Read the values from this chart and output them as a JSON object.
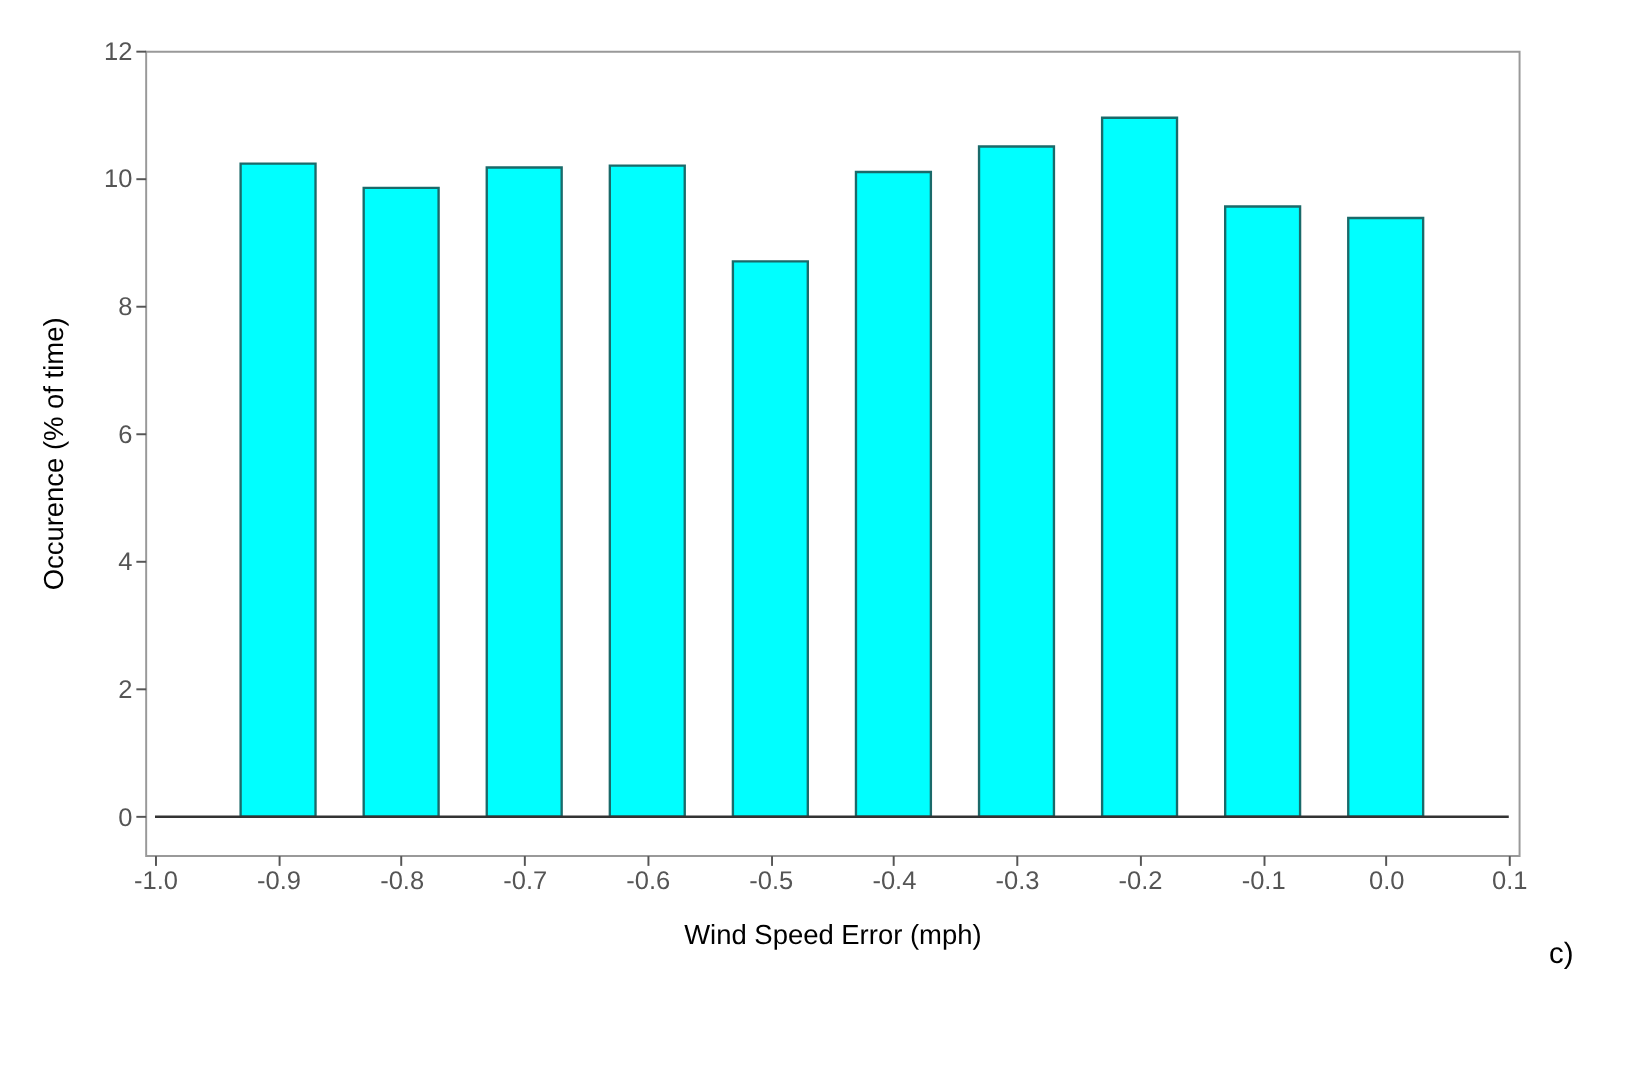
{
  "chart_data": {
    "type": "bar",
    "xlabel": "Wind Speed Error (mph)",
    "ylabel": "Occurence (% of time)",
    "x": [
      -0.9,
      -0.8,
      -0.7,
      -0.6,
      -0.5,
      -0.4,
      -0.3,
      -0.2,
      -0.1,
      0.0
    ],
    "values": [
      10.23,
      9.85,
      10.17,
      10.2,
      8.7,
      10.1,
      10.5,
      10.95,
      9.56,
      9.38
    ],
    "color": "#00ffff",
    "xlim": [
      -1.0,
      0.1
    ],
    "xticks": [
      {
        "value": -1.0,
        "label": "-1.0"
      },
      {
        "value": -0.9,
        "label": "-0.9"
      },
      {
        "value": -0.8,
        "label": "-0.8"
      },
      {
        "value": -0.7,
        "label": "-0.7"
      },
      {
        "value": -0.6,
        "label": "-0.6"
      },
      {
        "value": -0.5,
        "label": "-0.5"
      },
      {
        "value": -0.4,
        "label": "-0.4"
      },
      {
        "value": -0.3,
        "label": "-0.3"
      },
      {
        "value": -0.2,
        "label": "-0.2"
      },
      {
        "value": -0.1,
        "label": "-0.1"
      },
      {
        "value": 0.0,
        "label": "0.0"
      },
      {
        "value": 0.1,
        "label": "0.1"
      }
    ],
    "ylim": [
      -0.6,
      12
    ],
    "yticks": [
      0,
      2,
      4,
      6,
      8,
      10,
      12
    ],
    "ref_lines": [
      {
        "axis": "y",
        "value": 0,
        "color": "#333333"
      }
    ],
    "annotations": [
      "c)"
    ],
    "grid": false
  }
}
